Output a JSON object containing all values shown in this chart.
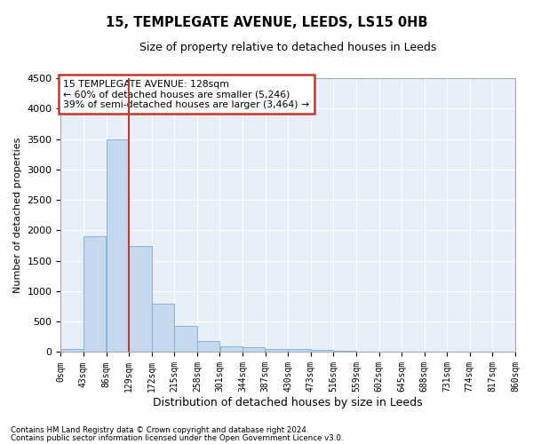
{
  "title1": "15, TEMPLEGATE AVENUE, LEEDS, LS15 0HB",
  "title2": "Size of property relative to detached houses in Leeds",
  "xlabel": "Distribution of detached houses by size in Leeds",
  "ylabel": "Number of detached properties",
  "annotation_title": "15 TEMPLEGATE AVENUE: 128sqm",
  "annotation_line1": "← 60% of detached houses are smaller (5,246)",
  "annotation_line2": "39% of semi-detached houses are larger (3,464) →",
  "footer1": "Contains HM Land Registry data © Crown copyright and database right 2024.",
  "footer2": "Contains public sector information licensed under the Open Government Licence v3.0.",
  "property_size": 128,
  "bin_edges": [
    0,
    43,
    86,
    129,
    172,
    215,
    258,
    301,
    344,
    387,
    430,
    473,
    516,
    559,
    602,
    645,
    688,
    731,
    774,
    817,
    860
  ],
  "bar_heights": [
    50,
    1900,
    3500,
    1750,
    800,
    430,
    175,
    100,
    75,
    50,
    50,
    30,
    15,
    10,
    8,
    5,
    3,
    2,
    1,
    1
  ],
  "bar_color": "#c5d8ee",
  "bar_edge_color": "#7aadd4",
  "vline_color": "#c0392b",
  "vline_x": 128,
  "annotation_box_color": "#c0392b",
  "background_color": "#e8eff8",
  "grid_color": "#ffffff",
  "ylim": [
    0,
    4500
  ],
  "yticks": [
    0,
    500,
    1000,
    1500,
    2000,
    2500,
    3000,
    3500,
    4000,
    4500
  ]
}
